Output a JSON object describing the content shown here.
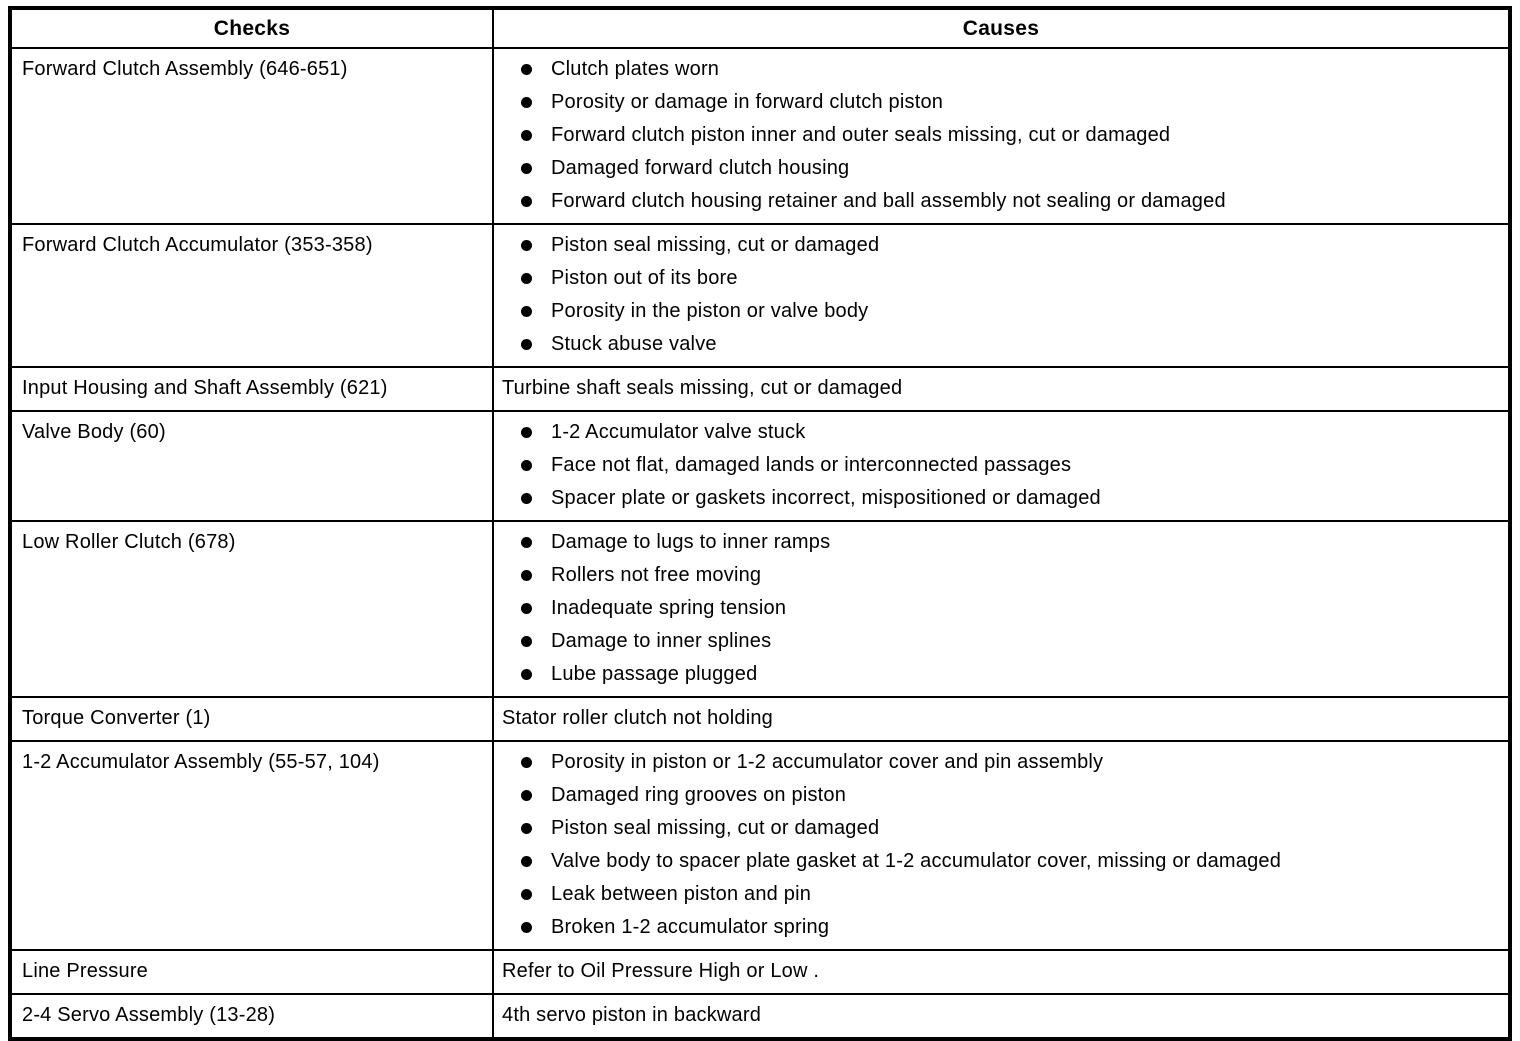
{
  "table": {
    "headers": {
      "checks": "Checks",
      "causes": "Causes"
    },
    "rows": [
      {
        "check": "Forward Clutch Assembly (646-651)",
        "bulleted": true,
        "causes": [
          "Clutch plates worn",
          "Porosity or damage in forward clutch piston",
          "Forward clutch piston inner and outer seals missing, cut or damaged",
          "Damaged forward clutch housing",
          "Forward clutch housing retainer and ball assembly not sealing or damaged"
        ]
      },
      {
        "check": "Forward Clutch Accumulator (353-358)",
        "bulleted": true,
        "causes": [
          "Piston seal missing, cut or damaged",
          "Piston out of its bore",
          "Porosity in the piston or valve body",
          "Stuck abuse valve"
        ]
      },
      {
        "check": "Input Housing and Shaft Assembly (621)",
        "bulleted": false,
        "causes": [
          "Turbine shaft seals missing, cut or damaged"
        ]
      },
      {
        "check": "Valve Body (60)",
        "bulleted": true,
        "causes": [
          "1-2 Accumulator valve stuck",
          "Face not flat, damaged lands or interconnected passages",
          "Spacer plate or gaskets incorrect, mispositioned or damaged"
        ]
      },
      {
        "check": "Low Roller Clutch (678)",
        "bulleted": true,
        "causes": [
          "Damage to lugs to inner ramps",
          "Rollers not free moving",
          "Inadequate spring tension",
          "Damage to inner splines",
          "Lube passage plugged"
        ]
      },
      {
        "check": "Torque Converter (1)",
        "bulleted": false,
        "causes": [
          "Stator roller clutch not holding"
        ]
      },
      {
        "check": "1-2 Accumulator Assembly (55-57, 104)",
        "bulleted": true,
        "causes": [
          "Porosity in piston or 1-2 accumulator cover and pin assembly",
          "Damaged ring grooves on piston",
          "Piston seal missing, cut or damaged",
          "Valve body to spacer plate gasket at 1-2 accumulator cover, missing or damaged",
          "Leak between piston and pin",
          "Broken 1-2 accumulator spring"
        ]
      },
      {
        "check": "Line Pressure",
        "bulleted": false,
        "causes": [
          "Refer to Oil Pressure High or Low ."
        ]
      },
      {
        "check": "2-4 Servo Assembly (13-28)",
        "bulleted": false,
        "causes": [
          "4th servo piston in backward"
        ]
      }
    ],
    "colors": {
      "text": "#000000",
      "background": "#ffffff",
      "border": "#000000"
    }
  }
}
